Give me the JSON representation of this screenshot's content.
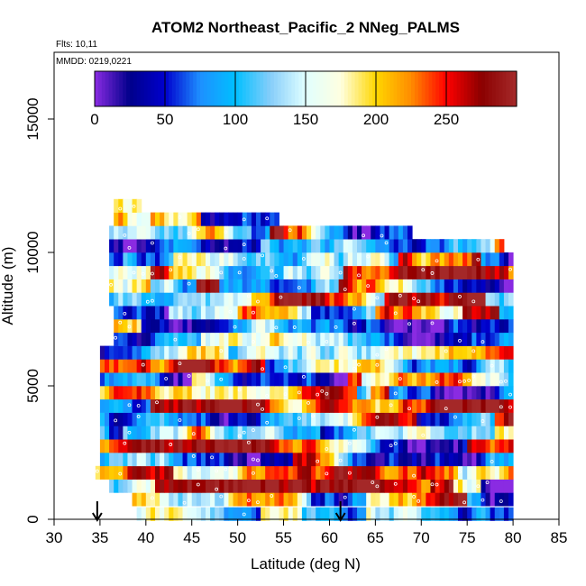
{
  "chart_data": {
    "type": "heatmap",
    "title": "ATOM2 Northeast_Pacific_2 NNeg_PALMS",
    "flights_label": "Flts: 10,11",
    "dates_label": "MMDD: 0219,0221",
    "xlabel": "Latitude (deg N)",
    "ylabel": "Altitude (m)",
    "xlim": [
      30,
      85
    ],
    "ylim": [
      0,
      17500
    ],
    "x_ticks": [
      "30",
      "35",
      "40",
      "45",
      "50",
      "55",
      "60",
      "65",
      "70",
      "75",
      "80",
      "85"
    ],
    "y_ticks": [
      "0",
      "5000",
      "10000",
      "15000"
    ],
    "colorbar": {
      "min": 0,
      "max": 300,
      "ticks": [
        "0",
        "50",
        "100",
        "150",
        "200",
        "250"
      ],
      "colors": [
        "#8a2be2",
        "#00008b",
        "#0000cd",
        "#1e90ff",
        "#00bfff",
        "#87cefa",
        "#e0ffff",
        "#ffffe0",
        "#ffd700",
        "#ff8c00",
        "#ff0000",
        "#8b0000",
        "#a52a2a"
      ]
    },
    "altitude_bins": [
      {
        "alt": 200,
        "lat_min": 39.0,
        "lat_max": 80.0
      },
      {
        "alt": 750,
        "lat_min": 38.5,
        "lat_max": 80.0
      },
      {
        "alt": 1250,
        "lat_min": 36.0,
        "lat_max": 80.0
      },
      {
        "alt": 1750,
        "lat_min": 34.5,
        "lat_max": 80.0
      },
      {
        "alt": 2250,
        "lat_min": 35.0,
        "lat_max": 80.0
      },
      {
        "alt": 2750,
        "lat_min": 35.0,
        "lat_max": 80.0
      },
      {
        "alt": 3250,
        "lat_min": 35.0,
        "lat_max": 80.0
      },
      {
        "alt": 3750,
        "lat_min": 35.0,
        "lat_max": 80.0
      },
      {
        "alt": 4250,
        "lat_min": 35.0,
        "lat_max": 80.0
      },
      {
        "alt": 4750,
        "lat_min": 35.0,
        "lat_max": 80.0
      },
      {
        "alt": 5250,
        "lat_min": 35.0,
        "lat_max": 80.0
      },
      {
        "alt": 5750,
        "lat_min": 35.0,
        "lat_max": 80.0
      },
      {
        "alt": 6250,
        "lat_min": 35.0,
        "lat_max": 80.0
      },
      {
        "alt": 6750,
        "lat_min": 36.5,
        "lat_max": 80.0
      },
      {
        "alt": 7250,
        "lat_min": 36.5,
        "lat_max": 80.0
      },
      {
        "alt": 7750,
        "lat_min": 36.5,
        "lat_max": 80.0
      },
      {
        "alt": 8250,
        "lat_min": 36.0,
        "lat_max": 80.0
      },
      {
        "alt": 8750,
        "lat_min": 36.0,
        "lat_max": 80.0
      },
      {
        "alt": 9250,
        "lat_min": 36.0,
        "lat_max": 80.0
      },
      {
        "alt": 9750,
        "lat_min": 36.0,
        "lat_max": 80.0
      },
      {
        "alt": 10250,
        "lat_min": 36.0,
        "lat_max": 79.0
      },
      {
        "alt": 10750,
        "lat_min": 36.0,
        "lat_max": 69.0
      },
      {
        "alt": 11250,
        "lat_min": 36.5,
        "lat_max": 54.5
      },
      {
        "alt": 11750,
        "lat_min": 36.5,
        "lat_max": 39.5
      }
    ],
    "arrows_lat": [
      34.7,
      61.2
    ]
  }
}
